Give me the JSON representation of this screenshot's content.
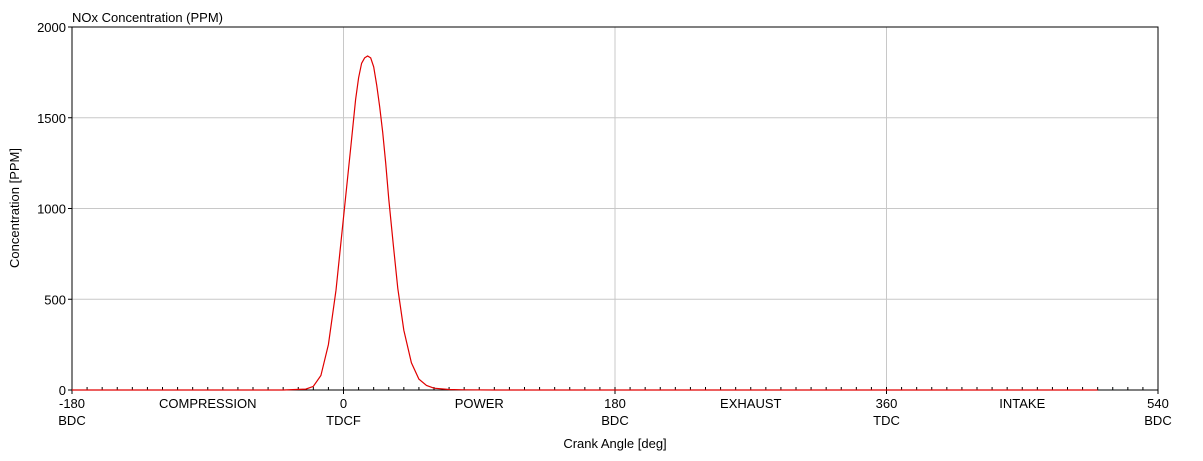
{
  "chart_data": {
    "type": "line",
    "title": "NOx Concentration (PPM)",
    "xlabel": "Crank Angle [deg]",
    "ylabel": "Concentration [PPM]",
    "xlim": [
      -180,
      540
    ],
    "ylim": [
      0,
      2000
    ],
    "x_ticks": [
      {
        "value": -180,
        "line1": "-180",
        "line2": "BDC"
      },
      {
        "value": 0,
        "line1": "0",
        "line2": "TDCF"
      },
      {
        "value": 180,
        "line1": "180",
        "line2": "BDC"
      },
      {
        "value": 360,
        "line1": "360",
        "line2": "TDC"
      },
      {
        "value": 540,
        "line1": "540",
        "line2": "BDC"
      }
    ],
    "phase_labels": [
      {
        "x": -90,
        "label": "COMPRESSION"
      },
      {
        "x": 90,
        "label": "POWER"
      },
      {
        "x": 270,
        "label": "EXHAUST"
      },
      {
        "x": 450,
        "label": "INTAKE"
      }
    ],
    "y_ticks": [
      0,
      500,
      1000,
      1500,
      2000
    ],
    "grid": true,
    "series": [
      {
        "color": "#e00000",
        "x": [
          -180,
          -40,
          -25,
          -20,
          -15,
          -10,
          -5,
          0,
          5,
          8,
          10,
          12,
          14,
          16,
          18,
          20,
          22,
          24,
          26,
          28,
          30,
          33,
          36,
          40,
          45,
          50,
          55,
          60,
          70,
          80,
          100,
          200,
          300,
          400,
          500
        ],
        "values": [
          0,
          0,
          5,
          20,
          80,
          250,
          550,
          950,
          1350,
          1600,
          1720,
          1800,
          1830,
          1840,
          1830,
          1780,
          1680,
          1560,
          1420,
          1250,
          1050,
          800,
          560,
          330,
          150,
          60,
          25,
          10,
          3,
          1,
          0,
          0,
          0,
          0,
          0
        ]
      }
    ]
  }
}
